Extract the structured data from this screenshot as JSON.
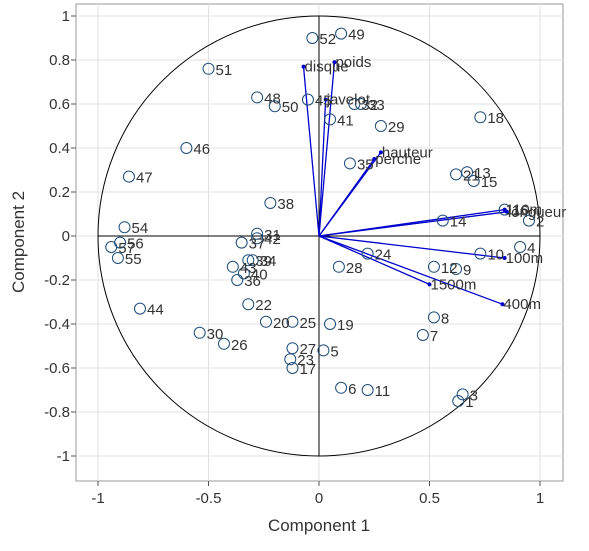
{
  "chart_data": {
    "type": "scatter",
    "xlabel": "Component 1",
    "ylabel": "Component 2",
    "xlim": [
      -1.1,
      1.1
    ],
    "ylim": [
      -1.1,
      1.1
    ],
    "xticks": [
      "-1",
      "-0.5",
      "0",
      "0.5",
      "1"
    ],
    "yticks": [
      "1",
      "0.8",
      "0.6",
      "0.4",
      "0.2",
      "0",
      "-0.2",
      "-0.4",
      "-0.6",
      "-0.8",
      "-1"
    ],
    "grid": true,
    "unit_circle": true,
    "colors": {
      "vectors": "#0000cc",
      "points": "#1f4e79",
      "axes": "#000000",
      "grid": "#e0e0e0"
    },
    "variables": [
      {
        "name": "disque",
        "x": -0.07,
        "y": 0.77
      },
      {
        "name": "poids",
        "x": 0.07,
        "y": 0.79
      },
      {
        "name": "javelot",
        "x": 0.03,
        "y": 0.62
      },
      {
        "name": "hauteur",
        "x": 0.28,
        "y": 0.38
      },
      {
        "name": "perche",
        "x": 0.25,
        "y": 0.35
      },
      {
        "name": "110m",
        "x": 0.84,
        "y": 0.12
      },
      {
        "name": "longueur",
        "x": 0.85,
        "y": 0.11
      },
      {
        "name": "100m",
        "x": 0.84,
        "y": -0.1
      },
      {
        "name": "1500m",
        "x": 0.5,
        "y": -0.22
      },
      {
        "name": "400m",
        "x": 0.83,
        "y": -0.31
      }
    ],
    "observations": [
      {
        "label": "1",
        "x": 0.63,
        "y": -0.75
      },
      {
        "label": "2",
        "x": 0.95,
        "y": 0.07
      },
      {
        "label": "3",
        "x": 0.65,
        "y": -0.72
      },
      {
        "label": "4",
        "x": 0.91,
        "y": -0.05
      },
      {
        "label": "5",
        "x": 0.02,
        "y": -0.52
      },
      {
        "label": "6",
        "x": 0.1,
        "y": -0.69
      },
      {
        "label": "7",
        "x": 0.47,
        "y": -0.45
      },
      {
        "label": "8",
        "x": 0.52,
        "y": -0.37
      },
      {
        "label": "9",
        "x": 0.62,
        "y": -0.15
      },
      {
        "label": "10",
        "x": 0.73,
        "y": -0.08
      },
      {
        "label": "11",
        "x": 0.22,
        "y": -0.7
      },
      {
        "label": "12",
        "x": 0.52,
        "y": -0.14
      },
      {
        "label": "13",
        "x": 0.67,
        "y": 0.29
      },
      {
        "label": "14",
        "x": 0.56,
        "y": 0.07
      },
      {
        "label": "15",
        "x": 0.7,
        "y": 0.25
      },
      {
        "label": "16",
        "x": 0.84,
        "y": 0.12
      },
      {
        "label": "17",
        "x": -0.12,
        "y": -0.6
      },
      {
        "label": "18",
        "x": 0.73,
        "y": 0.54
      },
      {
        "label": "19",
        "x": 0.05,
        "y": -0.4
      },
      {
        "label": "20",
        "x": -0.24,
        "y": -0.39
      },
      {
        "label": "21",
        "x": 0.62,
        "y": 0.28
      },
      {
        "label": "22",
        "x": -0.32,
        "y": -0.31
      },
      {
        "label": "23",
        "x": -0.13,
        "y": -0.56
      },
      {
        "label": "24",
        "x": 0.22,
        "y": -0.08
      },
      {
        "label": "25",
        "x": -0.12,
        "y": -0.39
      },
      {
        "label": "26",
        "x": -0.43,
        "y": -0.49
      },
      {
        "label": "27",
        "x": -0.12,
        "y": -0.51
      },
      {
        "label": "28",
        "x": 0.09,
        "y": -0.14
      },
      {
        "label": "29",
        "x": 0.28,
        "y": 0.5
      },
      {
        "label": "30",
        "x": -0.54,
        "y": -0.44
      },
      {
        "label": "31",
        "x": -0.28,
        "y": 0.01
      },
      {
        "label": "32",
        "x": 0.16,
        "y": 0.6
      },
      {
        "label": "33",
        "x": 0.19,
        "y": 0.6
      },
      {
        "label": "34",
        "x": -0.3,
        "y": -0.11
      },
      {
        "label": "35",
        "x": 0.14,
        "y": 0.33
      },
      {
        "label": "36",
        "x": -0.37,
        "y": -0.2
      },
      {
        "label": "37",
        "x": -0.35,
        "y": -0.03
      },
      {
        "label": "38",
        "x": -0.22,
        "y": 0.15
      },
      {
        "label": "39",
        "x": -0.32,
        "y": -0.11
      },
      {
        "label": "40",
        "x": -0.34,
        "y": -0.17
      },
      {
        "label": "41",
        "x": 0.05,
        "y": 0.53
      },
      {
        "label": "42",
        "x": -0.28,
        "y": -0.01
      },
      {
        "label": "43",
        "x": -0.39,
        "y": -0.14
      },
      {
        "label": "44",
        "x": -0.81,
        "y": -0.33
      },
      {
        "label": "45",
        "x": -0.05,
        "y": 0.62
      },
      {
        "label": "46",
        "x": -0.6,
        "y": 0.4
      },
      {
        "label": "47",
        "x": -0.86,
        "y": 0.27
      },
      {
        "label": "48",
        "x": -0.28,
        "y": 0.63
      },
      {
        "label": "49",
        "x": 0.1,
        "y": 0.92
      },
      {
        "label": "50",
        "x": -0.2,
        "y": 0.59
      },
      {
        "label": "51",
        "x": -0.5,
        "y": 0.76
      },
      {
        "label": "52",
        "x": -0.03,
        "y": 0.9
      },
      {
        "label": "54",
        "x": -0.88,
        "y": 0.04
      },
      {
        "label": "55",
        "x": -0.91,
        "y": -0.1
      },
      {
        "label": "56",
        "x": -0.9,
        "y": -0.03
      },
      {
        "label": "57",
        "x": -0.94,
        "y": -0.05
      }
    ]
  }
}
